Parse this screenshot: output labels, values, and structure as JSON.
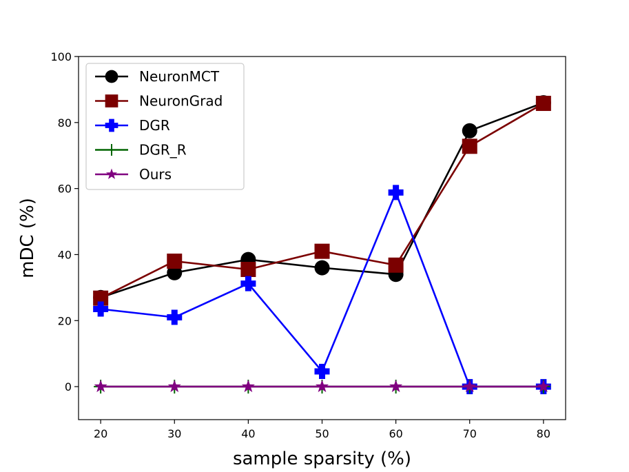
{
  "chart_data": {
    "type": "line",
    "title": "",
    "xlabel": "sample sparsity (%)",
    "ylabel": "mDC (%)",
    "x": [
      20,
      30,
      40,
      50,
      60,
      70,
      80
    ],
    "xticks": [
      20,
      30,
      40,
      50,
      60,
      70,
      80
    ],
    "yticks": [
      0,
      20,
      40,
      60,
      80,
      100
    ],
    "xlim": [
      17,
      83
    ],
    "ylim": [
      -10,
      100
    ],
    "grid": false,
    "legend_position": "top-left",
    "series": [
      {
        "name": "NeuronMCT",
        "color": "#000000",
        "marker": "circle",
        "values": [
          27.0,
          34.5,
          38.5,
          36.0,
          34.0,
          77.5,
          86.0
        ]
      },
      {
        "name": "NeuronGrad",
        "color": "#7b0000",
        "marker": "square",
        "values": [
          26.8,
          38.0,
          35.5,
          41.0,
          36.8,
          72.8,
          85.8
        ]
      },
      {
        "name": "DGR",
        "color": "#0000ff",
        "marker": "plus-filled",
        "values": [
          23.5,
          21.0,
          31.2,
          4.6,
          58.8,
          0.0,
          0.0
        ]
      },
      {
        "name": "DGR_R",
        "color": "#006400",
        "marker": "plus-thin",
        "values": [
          0,
          0,
          0,
          0,
          0,
          0,
          0
        ]
      },
      {
        "name": "Ours",
        "color": "#800080",
        "marker": "star",
        "values": [
          0,
          0,
          0,
          0,
          0,
          0,
          0
        ]
      }
    ]
  }
}
